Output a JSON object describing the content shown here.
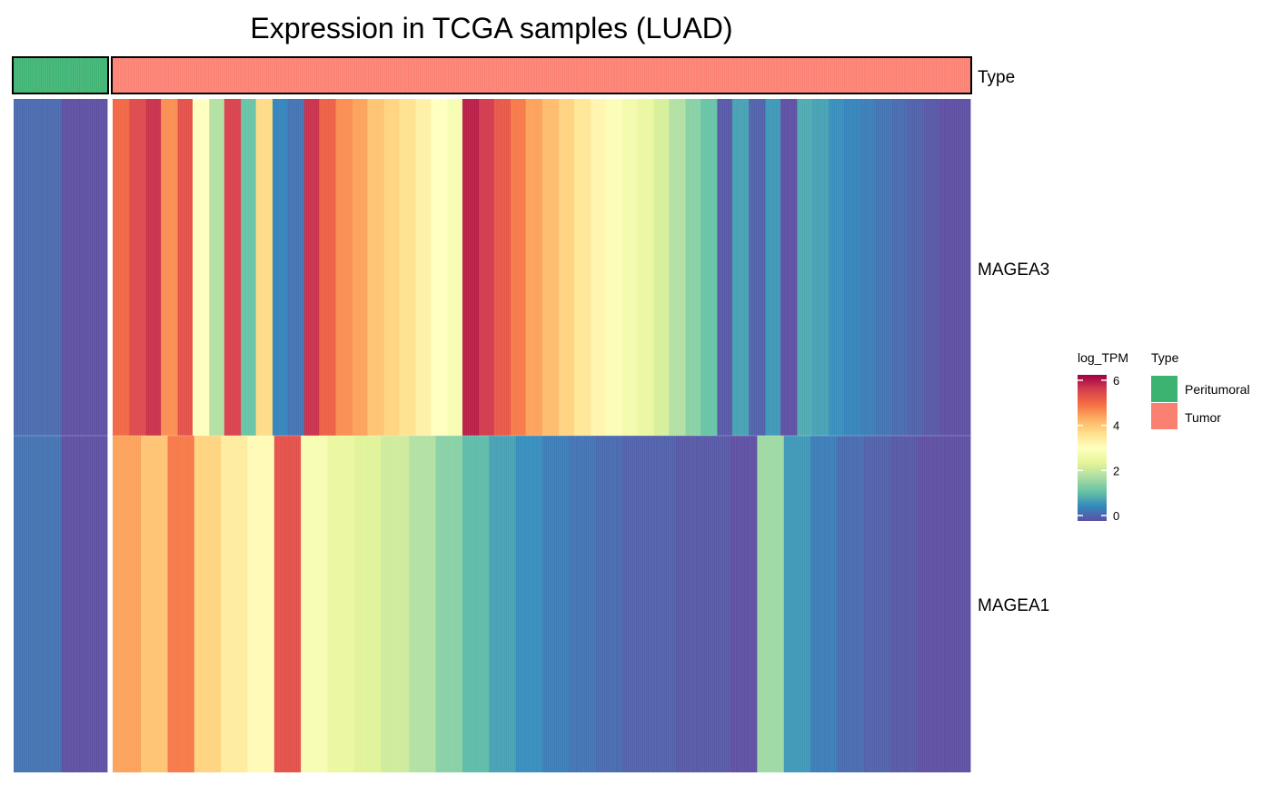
{
  "chart_data": {
    "type": "heatmap",
    "title": "Expression in TCGA samples (LUAD)",
    "rows": [
      "MAGEA3",
      "MAGEA1"
    ],
    "annotation": {
      "name": "Type",
      "groups": [
        {
          "label": "Peritumoral",
          "color": "#3cb371",
          "count": 59
        },
        {
          "label": "Tumor",
          "color": "#fa8072",
          "count": 515
        }
      ]
    },
    "colorbar": {
      "title": "log_TPM",
      "min": 0,
      "max": 6.4,
      "ticks": [
        0,
        2,
        4,
        6
      ],
      "palette": "Spectral (reversed)"
    },
    "series": [
      {
        "name": "MAGEA3",
        "segments": [
          {
            "group": "Peritumoral",
            "values": [
              0.3,
              0.0
            ]
          },
          {
            "group": "Tumor",
            "values": [
              5.2,
              5.6,
              5.9,
              4.8,
              5.5,
              3.2,
              2.0,
              5.7,
              1.3,
              3.9,
              0.6,
              0.4,
              5.9,
              5.3,
              4.8,
              4.6,
              4.2,
              4.0,
              3.8,
              3.5,
              3.2,
              3.0,
              6.1,
              5.8,
              5.4,
              5.0,
              4.6,
              4.3,
              4.0,
              3.7,
              3.4,
              3.1,
              2.9,
              2.7,
              2.4,
              2.0,
              1.6,
              1.3,
              0.1,
              0.9,
              0.2,
              0.8,
              0.0,
              1.0,
              0.9,
              0.7,
              0.6,
              0.5,
              0.4,
              0.3,
              0.2,
              0.1,
              0.0,
              0.0
            ]
          }
        ]
      },
      {
        "name": "MAGEA1",
        "segments": [
          {
            "group": "Peritumoral",
            "values": [
              0.4,
              0.0
            ]
          },
          {
            "group": "Tumor",
            "values": [
              4.6,
              4.2,
              5.0,
              4.0,
              3.6,
              3.3,
              5.5,
              3.0,
              2.7,
              2.5,
              2.3,
              2.0,
              1.6,
              1.2,
              0.9,
              0.7,
              0.5,
              0.4,
              0.3,
              0.2,
              0.2,
              0.1,
              0.1,
              0.0,
              1.8,
              0.8,
              0.5,
              0.3,
              0.2,
              0.1,
              0.0,
              0.0
            ]
          }
        ]
      }
    ],
    "legends": [
      {
        "title": "log_TPM"
      },
      {
        "title": "Type"
      }
    ]
  }
}
